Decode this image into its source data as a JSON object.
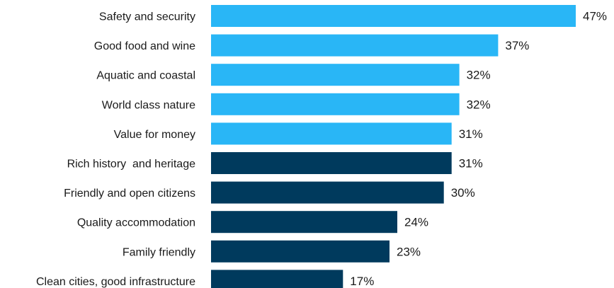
{
  "chart_data": {
    "type": "bar",
    "orientation": "horizontal",
    "categories": [
      "Safety and security",
      "Good food and wine",
      "Aquatic and coastal",
      "World class nature",
      "Value for money",
      "Rich history  and heritage",
      "Friendly and open citizens",
      "Quality accommodation",
      "Family friendly",
      "Clean cities, good infrastructure"
    ],
    "values": [
      47,
      37,
      32,
      32,
      31,
      31,
      30,
      24,
      23,
      17
    ],
    "value_labels": [
      "47%",
      "37%",
      "32%",
      "32%",
      "31%",
      "31%",
      "30%",
      "24%",
      "23%",
      "17%"
    ],
    "bar_colors": [
      "#29b6f6",
      "#29b6f6",
      "#29b6f6",
      "#29b6f6",
      "#29b6f6",
      "#003a5d",
      "#003a5d",
      "#003a5d",
      "#003a5d",
      "#003a5d"
    ],
    "xlim": [
      0,
      47
    ],
    "grid": false,
    "legend": "none",
    "title": "",
    "xlabel": "",
    "ylabel": ""
  }
}
